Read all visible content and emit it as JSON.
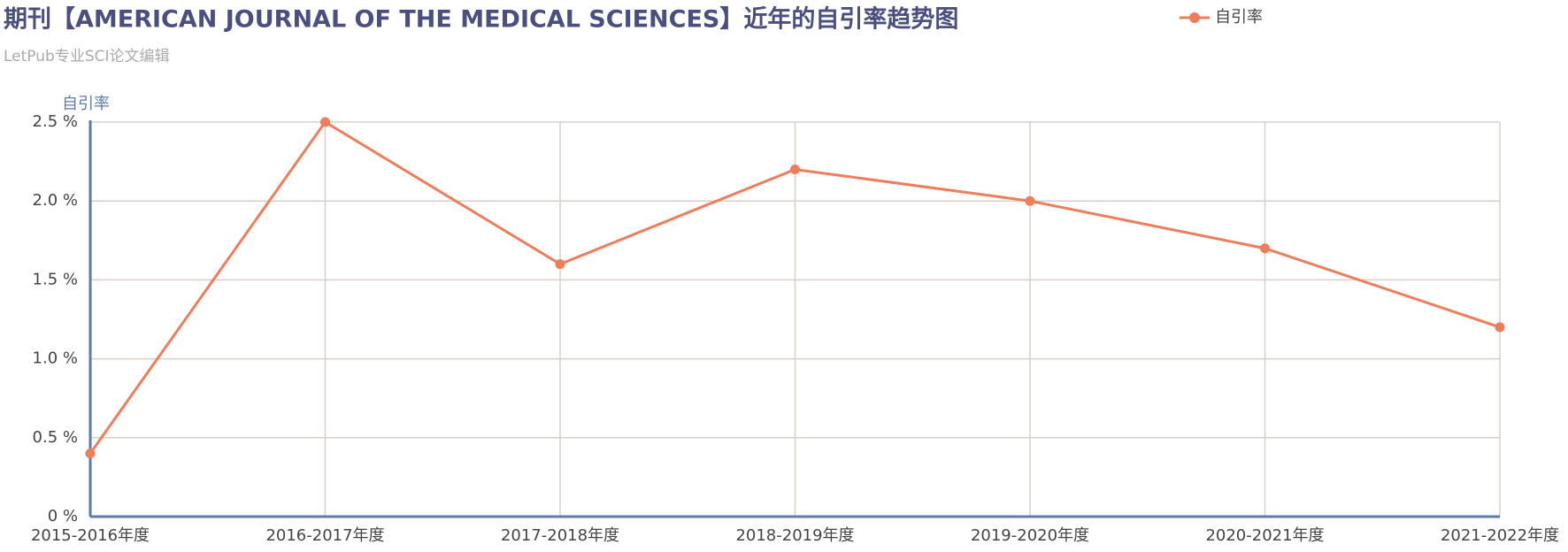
{
  "chart_data": {
    "type": "line",
    "title": "期刊【AMERICAN JOURNAL OF THE MEDICAL SCIENCES】近年的自引率趋势图",
    "subtitle": "LetPub专业SCI论文编辑",
    "y_axis_label": "自引率",
    "categories": [
      "2015-2016年度",
      "2016-2017年度",
      "2017-2018年度",
      "2018-2019年度",
      "2019-2020年度",
      "2020-2021年度",
      "2021-2022年度"
    ],
    "series": [
      {
        "name": "自引率",
        "color": "#ee7d5c",
        "values": [
          0.4,
          2.5,
          1.6,
          2.2,
          2.0,
          1.7,
          1.2
        ]
      }
    ],
    "ylim": [
      0,
      2.5
    ],
    "yticks": [
      {
        "value": 0,
        "label": "0 %"
      },
      {
        "value": 0.5,
        "label": "0.5 %"
      },
      {
        "value": 1.0,
        "label": "1.0 %"
      },
      {
        "value": 1.5,
        "label": "1.5 %"
      },
      {
        "value": 2.0,
        "label": "2.0 %"
      },
      {
        "value": 2.5,
        "label": "2.5 %"
      }
    ],
    "grid": true,
    "legend": "top"
  }
}
